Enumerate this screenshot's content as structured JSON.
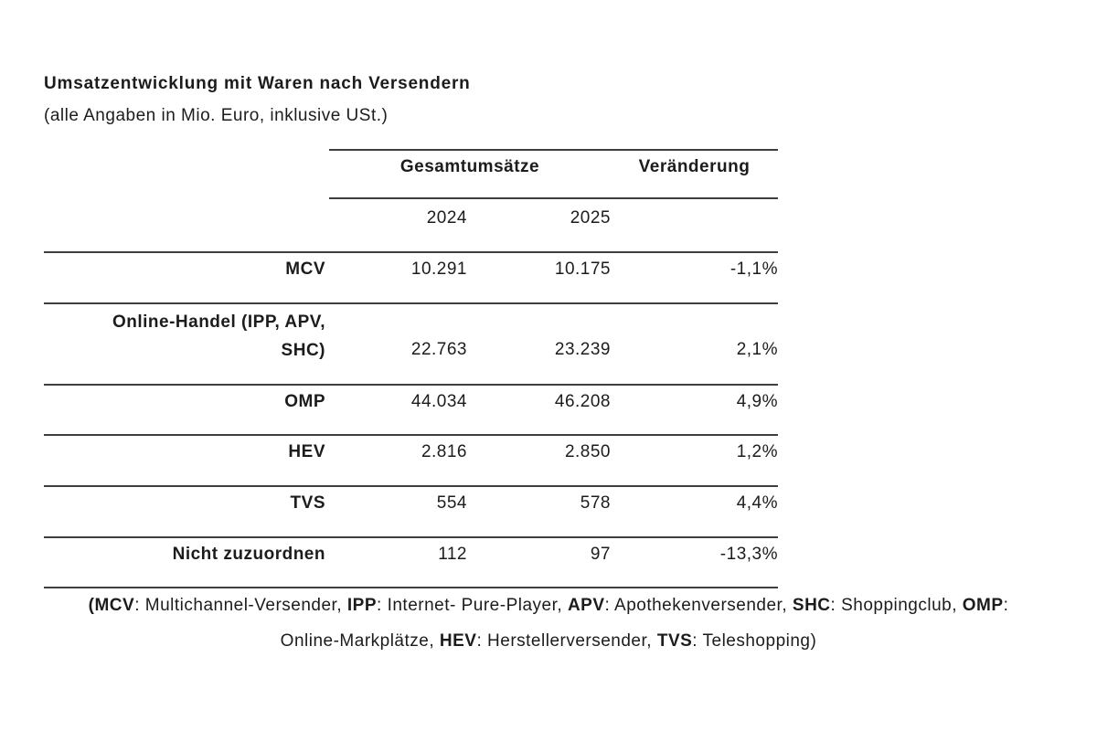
{
  "title": "Umsatzentwicklung mit Waren nach Versendern",
  "subtitle": "(alle Angaben in Mio. Euro, inklusive USt.)",
  "table": {
    "group_header": "Gesamtumsätze",
    "change_header": "Veränderung",
    "year_headers": {
      "col_2024": "2024",
      "col_2025": "2025"
    },
    "rows": [
      {
        "label": "MCV",
        "y2024": "10.291",
        "y2025": "10.175",
        "change": "-1,1%"
      },
      {
        "label_line1": "Online-Handel (IPP, APV,",
        "label_line2": "SHC)",
        "y2024": "22.763",
        "y2025": "23.239",
        "change": "2,1%"
      },
      {
        "label": "OMP",
        "y2024": "44.034",
        "y2025": "46.208",
        "change": "4,9%"
      },
      {
        "label": "HEV",
        "y2024": "2.816",
        "y2025": "2.850",
        "change": "1,2%"
      },
      {
        "label": "TVS",
        "y2024": "554",
        "y2025": "578",
        "change": "4,4%"
      },
      {
        "label": "Nicht zuzuordnen",
        "y2024": "112",
        "y2025": "97",
        "change": "-13,3%"
      }
    ]
  },
  "footnote": {
    "line1": [
      {
        "text": "(MCV",
        "bold": true
      },
      {
        "text": ": Multichannel-Versender, ",
        "bold": false
      },
      {
        "text": "IPP",
        "bold": true
      },
      {
        "text": ": Internet- Pure-Player, ",
        "bold": false
      },
      {
        "text": "APV",
        "bold": true
      },
      {
        "text": ": Apothekenversender, ",
        "bold": false
      },
      {
        "text": "SHC",
        "bold": true
      },
      {
        "text": ": Shoppingclub, ",
        "bold": false
      },
      {
        "text": "OMP",
        "bold": true
      },
      {
        "text": ":",
        "bold": false
      }
    ],
    "line2": [
      {
        "text": "Online-Markplätze, ",
        "bold": false
      },
      {
        "text": "HEV",
        "bold": true
      },
      {
        "text": ": Herstellerversender, ",
        "bold": false
      },
      {
        "text": "TVS",
        "bold": true
      },
      {
        "text": ": Teleshopping)",
        "bold": false
      }
    ]
  }
}
